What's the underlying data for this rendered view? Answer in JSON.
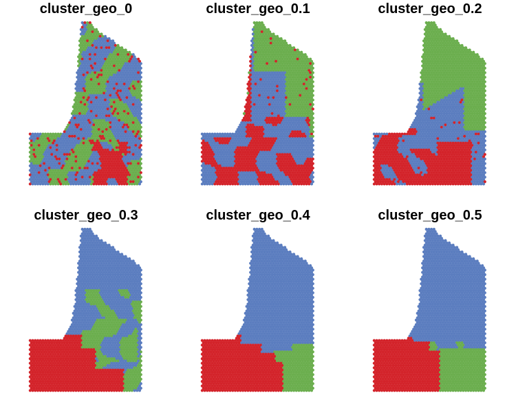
{
  "colors": {
    "red": "#D3232A",
    "green": "#6BAE4E",
    "blue": "#5B7DBF"
  },
  "chart_data": [
    {
      "type": "scatter",
      "title": "cluster_geo_0",
      "pattern": 0,
      "clusters": [
        "red",
        "green",
        "blue"
      ]
    },
    {
      "type": "scatter",
      "title": "cluster_geo_0.1",
      "pattern": 1,
      "clusters": [
        "red",
        "green",
        "blue"
      ]
    },
    {
      "type": "scatter",
      "title": "cluster_geo_0.2",
      "pattern": 2,
      "clusters": [
        "red",
        "green",
        "blue"
      ]
    },
    {
      "type": "scatter",
      "title": "cluster_geo_0.3",
      "pattern": 3,
      "clusters": [
        "red",
        "green",
        "blue"
      ]
    },
    {
      "type": "scatter",
      "title": "cluster_geo_0.4",
      "pattern": 4,
      "clusters": [
        "red",
        "green",
        "blue"
      ]
    },
    {
      "type": "scatter",
      "title": "cluster_geo_0.5",
      "pattern": 5,
      "clusters": [
        "red",
        "green",
        "blue"
      ]
    }
  ]
}
